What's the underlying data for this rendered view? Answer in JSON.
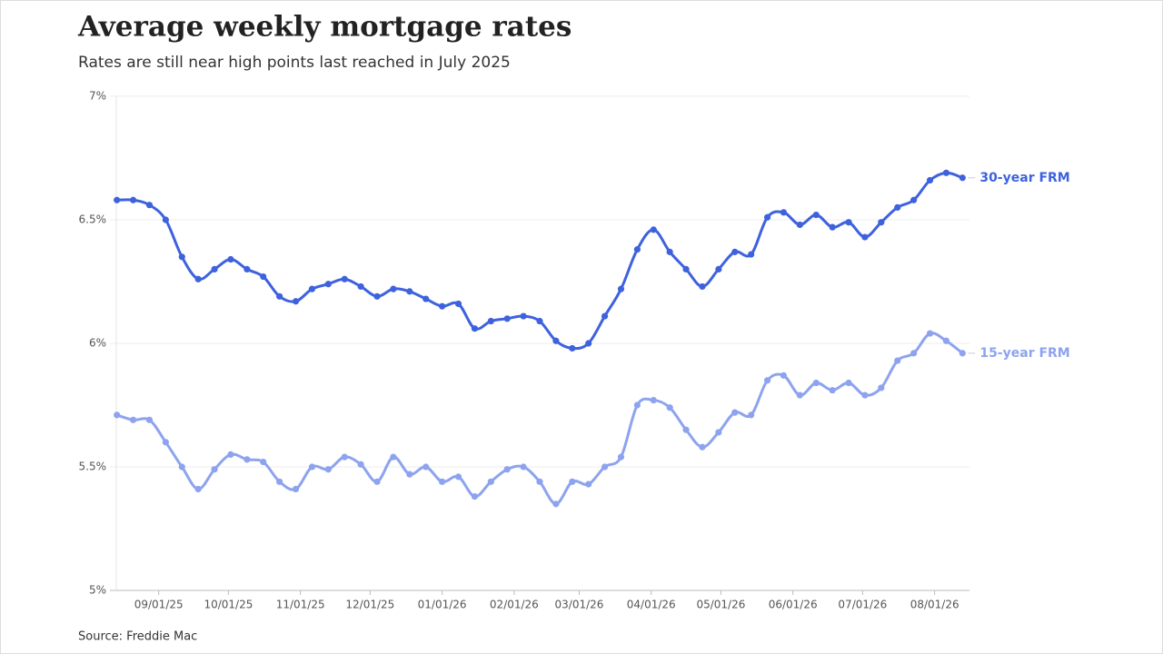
{
  "chart_data": {
    "type": "line",
    "title": "Average weekly mortgage rates",
    "subtitle": "Rates are still near high points last reached in July 2025",
    "source": "Source: Freddie Mac",
    "x": [
      "2025-08-14",
      "2025-08-21",
      "2025-08-28",
      "2025-09-04",
      "2025-09-11",
      "2025-09-18",
      "2025-09-25",
      "2025-10-02",
      "2025-10-09",
      "2025-10-16",
      "2025-10-23",
      "2025-10-30",
      "2025-11-06",
      "2025-11-13",
      "2025-11-20",
      "2025-11-27",
      "2025-12-04",
      "2025-12-11",
      "2025-12-18",
      "2025-12-25",
      "2026-01-01",
      "2026-01-08",
      "2026-01-15",
      "2026-01-22",
      "2026-01-29",
      "2026-02-05",
      "2026-02-12",
      "2026-02-19",
      "2026-02-26",
      "2026-03-05",
      "2026-03-12",
      "2026-03-19",
      "2026-03-26",
      "2026-04-02",
      "2026-04-09",
      "2026-04-16",
      "2026-04-23",
      "2026-04-30",
      "2026-05-07",
      "2026-05-14",
      "2026-05-21",
      "2026-05-28",
      "2026-06-04",
      "2026-06-11",
      "2026-06-18",
      "2026-06-25",
      "2026-07-02",
      "2026-07-09",
      "2026-07-16",
      "2026-07-23",
      "2026-07-30",
      "2026-08-06",
      "2026-08-13"
    ],
    "series": [
      {
        "name": "30-year FRM",
        "color": "#3e62de",
        "values": [
          6.58,
          6.58,
          6.56,
          6.5,
          6.35,
          6.26,
          6.3,
          6.34,
          6.3,
          6.27,
          6.19,
          6.17,
          6.22,
          6.24,
          6.26,
          6.23,
          6.19,
          6.22,
          6.21,
          6.18,
          6.15,
          6.16,
          6.06,
          6.09,
          6.1,
          6.11,
          6.09,
          6.01,
          5.98,
          6.0,
          6.11,
          6.22,
          6.38,
          6.46,
          6.37,
          6.3,
          6.23,
          6.3,
          6.37,
          6.36,
          6.51,
          6.53,
          6.48,
          6.52,
          6.47,
          6.49,
          6.43,
          6.49,
          6.55,
          6.58,
          6.66,
          6.69,
          6.67
        ]
      },
      {
        "name": "15-year FRM",
        "color": "#8da3ef",
        "values": [
          5.71,
          5.69,
          5.69,
          5.6,
          5.5,
          5.41,
          5.49,
          5.55,
          5.53,
          5.52,
          5.44,
          5.41,
          5.5,
          5.49,
          5.54,
          5.51,
          5.44,
          5.54,
          5.47,
          5.5,
          5.44,
          5.46,
          5.38,
          5.44,
          5.49,
          5.5,
          5.44,
          5.35,
          5.44,
          5.43,
          5.5,
          5.54,
          5.75,
          5.77,
          5.74,
          5.65,
          5.58,
          5.64,
          5.72,
          5.71,
          5.85,
          5.87,
          5.79,
          5.84,
          5.81,
          5.84,
          5.79,
          5.82,
          5.93,
          5.96,
          6.04,
          6.01,
          5.96
        ]
      }
    ],
    "xlim": [
      "2025-08-11",
      "2026-08-16"
    ],
    "xticks": [
      {
        "value": "2025-09-01",
        "label": "09/01/25"
      },
      {
        "value": "2025-10-01",
        "label": "10/01/25"
      },
      {
        "value": "2025-11-01",
        "label": "11/01/25"
      },
      {
        "value": "2025-12-01",
        "label": "12/01/25"
      },
      {
        "value": "2026-01-01",
        "label": "01/01/26"
      },
      {
        "value": "2026-02-01",
        "label": "02/01/26"
      },
      {
        "value": "2026-03-01",
        "label": "03/01/26"
      },
      {
        "value": "2026-04-01",
        "label": "04/01/26"
      },
      {
        "value": "2026-05-01",
        "label": "05/01/26"
      },
      {
        "value": "2026-06-01",
        "label": "06/01/26"
      },
      {
        "value": "2026-07-01",
        "label": "07/01/26"
      },
      {
        "value": "2026-08-01",
        "label": "08/01/26"
      }
    ],
    "ylim": [
      5,
      7
    ],
    "yticks": [
      {
        "value": 5,
        "label": "5%"
      },
      {
        "value": 5.5,
        "label": "5.5%"
      },
      {
        "value": 6,
        "label": "6%"
      },
      {
        "value": 6.5,
        "label": "6.5%"
      },
      {
        "value": 7,
        "label": "7%"
      }
    ],
    "grid": true
  }
}
